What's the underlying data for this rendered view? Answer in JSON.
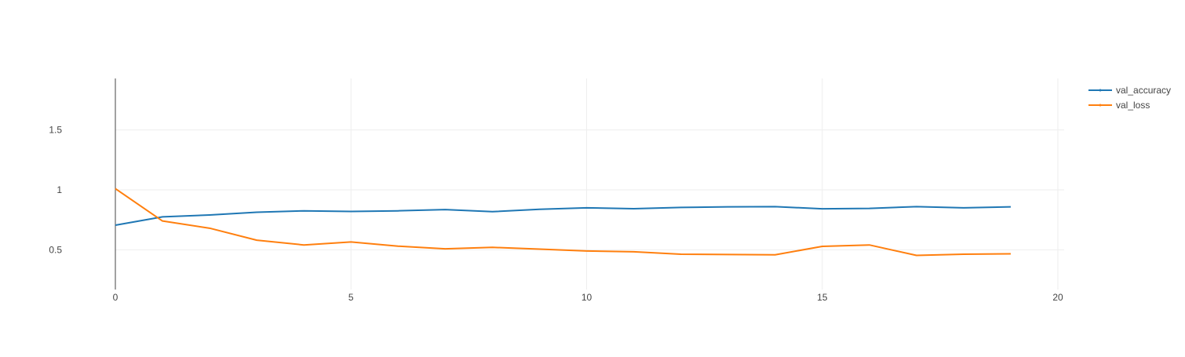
{
  "chart_data": {
    "type": "line",
    "x": [
      0,
      1,
      2,
      3,
      4,
      5,
      6,
      7,
      8,
      9,
      10,
      11,
      12,
      13,
      14,
      15,
      16,
      17,
      18,
      19
    ],
    "series": [
      {
        "name": "val_accuracy",
        "color": "#1f77b4",
        "values": [
          0.705,
          0.775,
          0.79,
          0.813,
          0.825,
          0.82,
          0.825,
          0.835,
          0.818,
          0.838,
          0.85,
          0.843,
          0.853,
          0.858,
          0.86,
          0.842,
          0.845,
          0.86,
          0.85,
          0.858
        ]
      },
      {
        "name": "val_loss",
        "color": "#ff7f0e",
        "values": [
          1.01,
          0.74,
          0.68,
          0.58,
          0.54,
          0.565,
          0.53,
          0.508,
          0.52,
          0.505,
          0.49,
          0.483,
          0.463,
          0.46,
          0.458,
          0.528,
          0.54,
          0.453,
          0.463,
          0.466
        ]
      }
    ],
    "xlim": [
      0,
      20
    ],
    "ylim": [
      0.168,
      1.93
    ],
    "xticks": [
      0,
      5,
      10,
      15,
      20
    ],
    "yticks": [
      0.5,
      1,
      1.5
    ],
    "xtick_labels": [
      "0",
      "5",
      "10",
      "15",
      "20"
    ],
    "ytick_labels": [
      "0.5",
      "1",
      "1.5"
    ],
    "grid": true,
    "legend_position": "top-right",
    "title": "",
    "xlabel": "",
    "ylabel": ""
  }
}
